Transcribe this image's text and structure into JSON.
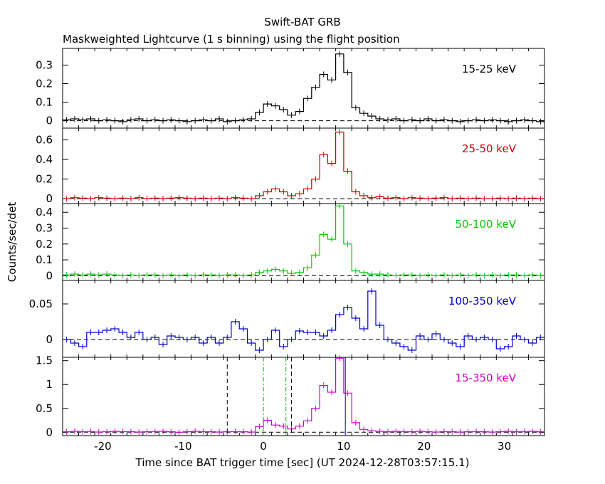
{
  "chart_data": {
    "type": "line",
    "title": "Swift-BAT GRB",
    "subtitle": "Maskweighted Lightcurve (1 s binning) using the flight position",
    "xlabel": "Time since BAT trigger time [sec] (UT 2024-12-28T03:57:15.1)",
    "ylabel": "Counts/sec/det",
    "xlim": [
      -25,
      35
    ],
    "x_ticks": [
      -20,
      -10,
      0,
      10,
      20,
      30
    ],
    "bin_start": -25,
    "bin_width": 1,
    "colors": {
      "axes": "#000000",
      "dashed_markers": "#000000",
      "t90_markers": "#00aa00",
      "trigger_line": "#0000aa"
    },
    "panels": [
      {
        "name": "15-25 keV",
        "color": "#000000",
        "ylim": [
          -0.04,
          0.39
        ],
        "yticks": [
          0,
          0.1,
          0.2,
          0.3
        ],
        "ytick_labels": [
          "0",
          "0.1",
          "0.2",
          "0.3"
        ],
        "values": [
          0.005,
          0.01,
          0.005,
          0.01,
          0.0,
          0.005,
          0.0,
          -0.005,
          0.005,
          0.01,
          0.0,
          0.005,
          0.0,
          0.005,
          0.0,
          -0.005,
          0.0,
          0.005,
          0.0,
          0.01,
          -0.005,
          0.0,
          0.005,
          0.01,
          0.045,
          0.09,
          0.08,
          0.06,
          0.03,
          0.05,
          0.12,
          0.18,
          0.25,
          0.22,
          0.36,
          0.26,
          0.07,
          0.04,
          0.025,
          0.01,
          0.005,
          0.01,
          0.0,
          0.005,
          0.0,
          0.01,
          0.0,
          0.005,
          0.0,
          -0.005,
          0.0,
          0.005,
          0.0,
          0.005,
          0.0,
          -0.005,
          0.0,
          0.005,
          0.0,
          -0.005
        ]
      },
      {
        "name": "25-50 keV",
        "color": "#cc0000",
        "ylim": [
          -0.05,
          0.72
        ],
        "yticks": [
          0,
          0.2,
          0.4,
          0.6
        ],
        "ytick_labels": [
          "0",
          "0.2",
          "0.4",
          "0.6"
        ],
        "values": [
          0.0,
          0.01,
          0.005,
          0.0,
          0.01,
          0.005,
          0.0,
          0.005,
          0.0,
          0.01,
          0.0,
          0.005,
          0.0,
          0.005,
          0.01,
          0.005,
          0.0,
          0.005,
          0.0,
          0.005,
          0.0,
          0.01,
          0.005,
          0.0,
          0.03,
          0.07,
          0.1,
          0.07,
          0.03,
          0.05,
          0.1,
          0.2,
          0.45,
          0.36,
          0.68,
          0.28,
          0.07,
          0.03,
          0.01,
          0.02,
          0.005,
          0.01,
          0.0,
          0.01,
          0.005,
          0.0,
          0.005,
          0.01,
          0.0,
          0.005,
          0.0,
          0.005,
          0.0,
          0.0,
          0.005,
          0.0,
          0.005,
          0.0,
          0.005,
          0.0
        ]
      },
      {
        "name": "50-100 keV",
        "color": "#00cc00",
        "ylim": [
          -0.03,
          0.455
        ],
        "yticks": [
          0,
          0.1,
          0.2,
          0.3,
          0.4
        ],
        "ytick_labels": [
          "0",
          "0.1",
          "0.2",
          "0.3",
          "0.4"
        ],
        "values": [
          0.005,
          0.01,
          0.005,
          0.01,
          0.005,
          0.01,
          0.005,
          0.0,
          0.005,
          0.0,
          0.005,
          0.005,
          0.0,
          0.005,
          0.0,
          0.005,
          0.0,
          0.005,
          0.005,
          0.0,
          0.005,
          0.005,
          0.0,
          0.005,
          0.02,
          0.03,
          0.04,
          0.03,
          0.015,
          0.02,
          0.05,
          0.13,
          0.26,
          0.23,
          0.44,
          0.2,
          0.03,
          0.02,
          0.01,
          0.01,
          0.005,
          0.0,
          0.005,
          0.005,
          0.0,
          0.005,
          0.0,
          0.005,
          0.0,
          0.005,
          0.0,
          0.005,
          0.0,
          0.005,
          0.0,
          0.005,
          0.005,
          0.0,
          0.005,
          0.0
        ]
      },
      {
        "name": "100-350 keV",
        "color": "#0000cc",
        "ylim": [
          -0.025,
          0.083
        ],
        "yticks": [
          0,
          0.05
        ],
        "ytick_labels": [
          "0",
          "0.05"
        ],
        "values": [
          0.0,
          -0.005,
          -0.01,
          0.01,
          0.01,
          0.013,
          0.015,
          0.01,
          0.003,
          0.01,
          0.0,
          0.003,
          -0.007,
          0.005,
          0.003,
          0.0,
          0.003,
          -0.005,
          0.003,
          -0.005,
          0.003,
          0.025,
          0.015,
          -0.005,
          -0.015,
          0.0,
          0.013,
          -0.01,
          0.0,
          0.012,
          0.01,
          0.01,
          0.005,
          0.013,
          0.035,
          0.045,
          0.03,
          0.015,
          0.068,
          0.02,
          0.0,
          -0.005,
          -0.01,
          -0.015,
          0.005,
          0.0,
          0.008,
          0.0,
          -0.005,
          -0.01,
          0.005,
          0.0,
          0.003,
          0.0,
          -0.013,
          -0.01,
          0.005,
          0.0,
          -0.005,
          0.003
        ]
      },
      {
        "name": "15-350 keV",
        "color": "#cc00cc",
        "ylim": [
          -0.07,
          1.57
        ],
        "yticks": [
          0,
          0.5,
          1,
          1.5
        ],
        "ytick_labels": [
          "0",
          "0.5",
          "1",
          "1.5"
        ],
        "values": [
          0.01,
          0.02,
          0.01,
          0.015,
          0.005,
          0.01,
          0.02,
          0.015,
          0.01,
          0.005,
          0.01,
          0.015,
          0.02,
          0.01,
          0.0,
          0.01,
          0.02,
          0.015,
          0.01,
          0.005,
          0.01,
          0.015,
          0.01,
          0.005,
          0.12,
          0.25,
          0.15,
          0.13,
          0.07,
          0.13,
          0.24,
          0.5,
          0.98,
          0.84,
          1.55,
          0.82,
          0.2,
          0.06,
          0.03,
          0.02,
          0.01,
          0.02,
          0.015,
          0.01,
          0.02,
          0.01,
          0.005,
          0.015,
          0.01,
          0.005,
          0.01,
          0.015,
          0.01,
          0.005,
          0.01,
          0.02,
          0.01,
          0.015,
          0.02,
          0.01
        ],
        "markers": {
          "dashed": [
            -4.5,
            3.5
          ],
          "t90": [
            0.0,
            2.8
          ],
          "trigger": [
            10.2
          ]
        }
      }
    ]
  }
}
